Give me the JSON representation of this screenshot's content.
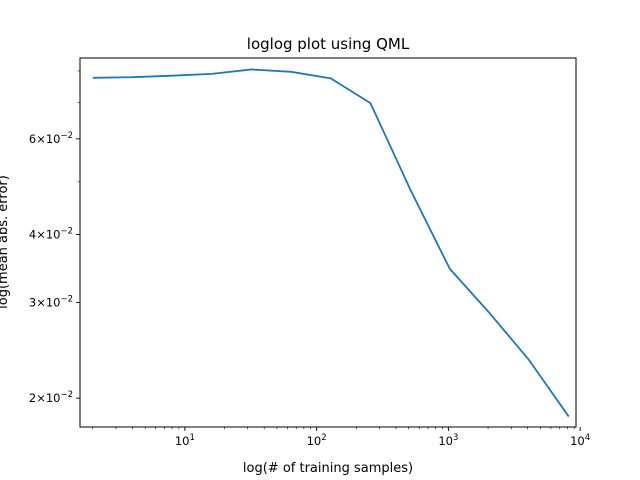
{
  "chart_data": {
    "type": "line",
    "title": "loglog plot using QML",
    "xlabel": "log(# of training samples)",
    "ylabel": "log(mean abs. error)",
    "xscale": "log",
    "yscale": "log",
    "xlim": [
      1.6,
      9300
    ],
    "ylim": [
      0.0177,
      0.0845
    ],
    "grid": false,
    "series_color": "#1f77b4",
    "x_ticks": [
      {
        "value": 10,
        "base": "10",
        "exp": "1"
      },
      {
        "value": 100,
        "base": "10",
        "exp": "2"
      },
      {
        "value": 1000,
        "base": "10",
        "exp": "3"
      },
      {
        "value": 10000,
        "base": "10",
        "exp": "4"
      }
    ],
    "y_ticks": [
      {
        "value": 0.02,
        "mant": "2",
        "base": "10",
        "exp": "−2"
      },
      {
        "value": 0.03,
        "mant": "3",
        "base": "10",
        "exp": "−2"
      },
      {
        "value": 0.04,
        "mant": "4",
        "base": "10",
        "exp": "−2"
      },
      {
        "value": 0.06,
        "mant": "6",
        "base": "10",
        "exp": "−2"
      }
    ],
    "series": [
      {
        "x": [
          2,
          4,
          8,
          16,
          32,
          64,
          128,
          256,
          512,
          1024,
          2048,
          4096,
          8192
        ],
        "y": [
          0.0777,
          0.0779,
          0.0784,
          0.079,
          0.0805,
          0.0797,
          0.0775,
          0.0698,
          0.0485,
          0.0346,
          0.0287,
          0.0235,
          0.0185
        ]
      }
    ]
  }
}
